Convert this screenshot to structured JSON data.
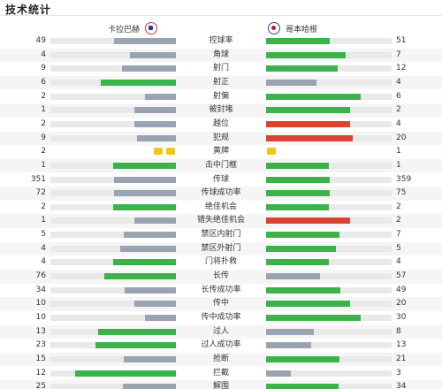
{
  "header": {
    "title": "技术统计"
  },
  "teams": {
    "home": "卡拉巴赫",
    "away": "哥本哈根"
  },
  "colors": {
    "lead": "#3cb34a",
    "trail": "#99a3b1",
    "bad": "#d9432f",
    "yellow": "#f2c80f"
  },
  "stats": [
    {
      "label": "控球率",
      "home": "49",
      "away": "51",
      "hv": 49,
      "av": 51,
      "max": 100,
      "hc": "grey",
      "ac": "green"
    },
    {
      "label": "角球",
      "home": "4",
      "away": "7",
      "hv": 4,
      "av": 7,
      "max": 11,
      "hc": "grey",
      "ac": "green"
    },
    {
      "label": "射门",
      "home": "9",
      "away": "12",
      "hv": 9,
      "av": 12,
      "max": 21,
      "hc": "grey",
      "ac": "green"
    },
    {
      "label": "射正",
      "home": "6",
      "away": "4",
      "hv": 6,
      "av": 4,
      "max": 10,
      "hc": "green",
      "ac": "grey"
    },
    {
      "label": "射偏",
      "home": "2",
      "away": "6",
      "hv": 2,
      "av": 6,
      "max": 8,
      "hc": "grey",
      "ac": "green"
    },
    {
      "label": "被封堵",
      "home": "1",
      "away": "2",
      "hv": 1,
      "av": 2,
      "max": 3,
      "hc": "grey",
      "ac": "green"
    },
    {
      "label": "越位",
      "home": "2",
      "away": "4",
      "hv": 2,
      "av": 4,
      "max": 6,
      "hc": "grey",
      "ac": "red"
    },
    {
      "label": "犯规",
      "home": "9",
      "away": "20",
      "hv": 9,
      "av": 20,
      "max": 29,
      "hc": "grey",
      "ac": "red"
    },
    {
      "label": "黄牌",
      "home": "2",
      "away": "1",
      "hv": 2,
      "av": 1,
      "type": "cards"
    },
    {
      "label": "击中门框",
      "home": "1",
      "away": "1",
      "hv": 1,
      "av": 1,
      "max": 2,
      "hc": "green",
      "ac": "green"
    },
    {
      "label": "传球",
      "home": "351",
      "away": "359",
      "hv": 351,
      "av": 359,
      "max": 710,
      "hc": "grey",
      "ac": "green"
    },
    {
      "label": "传球成功率",
      "home": "72",
      "away": "75",
      "hv": 72,
      "av": 75,
      "max": 147,
      "hc": "grey",
      "ac": "green"
    },
    {
      "label": "绝佳机会",
      "home": "2",
      "away": "2",
      "hv": 2,
      "av": 2,
      "max": 4,
      "hc": "green",
      "ac": "green"
    },
    {
      "label": "错失绝佳机会",
      "home": "1",
      "away": "2",
      "hv": 1,
      "av": 2,
      "max": 3,
      "hc": "grey",
      "ac": "red"
    },
    {
      "label": "禁区内射门",
      "home": "5",
      "away": "7",
      "hv": 5,
      "av": 7,
      "max": 12,
      "hc": "grey",
      "ac": "green"
    },
    {
      "label": "禁区外射门",
      "home": "4",
      "away": "5",
      "hv": 4,
      "av": 5,
      "max": 9,
      "hc": "grey",
      "ac": "green"
    },
    {
      "label": "门将扑救",
      "home": "4",
      "away": "4",
      "hv": 4,
      "av": 4,
      "max": 8,
      "hc": "green",
      "ac": "green"
    },
    {
      "label": "长传",
      "home": "76",
      "away": "57",
      "hv": 76,
      "av": 57,
      "max": 133,
      "hc": "green",
      "ac": "grey"
    },
    {
      "label": "长传成功率",
      "home": "34",
      "away": "49",
      "hv": 34,
      "av": 49,
      "max": 83,
      "hc": "grey",
      "ac": "green"
    },
    {
      "label": "传中",
      "home": "10",
      "away": "20",
      "hv": 10,
      "av": 20,
      "max": 30,
      "hc": "grey",
      "ac": "green"
    },
    {
      "label": "传中成功率",
      "home": "10",
      "away": "30",
      "hv": 10,
      "av": 30,
      "max": 40,
      "hc": "grey",
      "ac": "green"
    },
    {
      "label": "过人",
      "home": "13",
      "away": "8",
      "hv": 13,
      "av": 8,
      "max": 21,
      "hc": "green",
      "ac": "grey"
    },
    {
      "label": "过人成功率",
      "home": "23",
      "away": "13",
      "hv": 23,
      "av": 13,
      "max": 36,
      "hc": "green",
      "ac": "grey"
    },
    {
      "label": "抢断",
      "home": "15",
      "away": "21",
      "hv": 15,
      "av": 21,
      "max": 36,
      "hc": "grey",
      "ac": "green"
    },
    {
      "label": "拦截",
      "home": "12",
      "away": "3",
      "hv": 12,
      "av": 3,
      "max": 15,
      "hc": "green",
      "ac": "grey"
    },
    {
      "label": "解围",
      "home": "25",
      "away": "34",
      "hv": 25,
      "av": 34,
      "max": 59,
      "hc": "grey",
      "ac": "green"
    }
  ]
}
